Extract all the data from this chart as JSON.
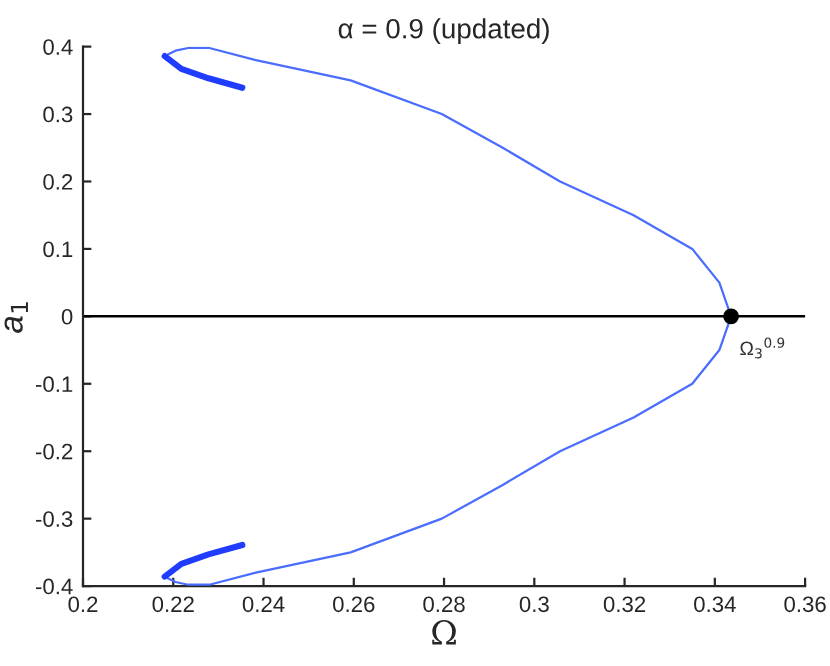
{
  "chart_data": {
    "type": "line",
    "title": "α = 0.9 (updated)",
    "xlabel": "Ω",
    "ylabel": "a$_{1}$",
    "series": [
      {
        "color": "#4a6cff",
        "x": [
          0.2181,
          0.2205,
          0.2233,
          0.228,
          0.2383,
          0.2593,
          0.2795,
          0.293,
          0.3057,
          0.322,
          0.335,
          0.341,
          0.3436,
          0.341,
          0.335,
          0.322,
          0.3057,
          0.293,
          0.2795,
          0.2593,
          0.2383,
          0.228,
          0.2233,
          0.2205,
          0.2181
        ],
        "values": [
          0.386,
          0.394,
          0.398,
          0.398,
          0.38,
          0.35,
          0.3,
          0.25,
          0.2,
          0.15,
          0.1,
          0.05,
          0,
          -0.05,
          -0.1,
          -0.15,
          -0.2,
          -0.25,
          -0.3,
          -0.35,
          -0.38,
          -0.398,
          -0.398,
          -0.394,
          -0.386
        ]
      },
      {
        "color": "#1f3cff",
        "x": [
          0.2181,
          0.2218,
          0.2278,
          0.2353
        ],
        "values": [
          0.386,
          0.367,
          0.353,
          0.339
        ]
      },
      {
        "color": "#1f3cff",
        "x": [
          0.2181,
          0.2218,
          0.2278,
          0.2353
        ],
        "values": [
          -0.386,
          -0.367,
          -0.353,
          -0.339
        ]
      },
      {
        "type": "scatter",
        "color": "#000000",
        "x": [
          0.3436
        ],
        "values": [
          0
        ]
      }
    ],
    "ref_lines": [
      {
        "axis": "y",
        "value": 0,
        "color": "#000000"
      }
    ],
    "annotations": [
      {
        "text": "Ω$_{3}$$^{0.9}$",
        "x": 0.3436,
        "y": 0
      }
    ],
    "xlim": [
      0.2,
      0.36
    ],
    "xticks": [
      0.2,
      0.22,
      0.24,
      0.26,
      0.28,
      0.3,
      0.32,
      0.34,
      0.36
    ],
    "ylim": [
      -0.4,
      0.4
    ],
    "yticks": [
      -0.4,
      -0.3,
      -0.2,
      -0.1,
      0,
      0.1,
      0.2,
      0.3,
      0.4
    ],
    "grid": false,
    "legend": false
  }
}
